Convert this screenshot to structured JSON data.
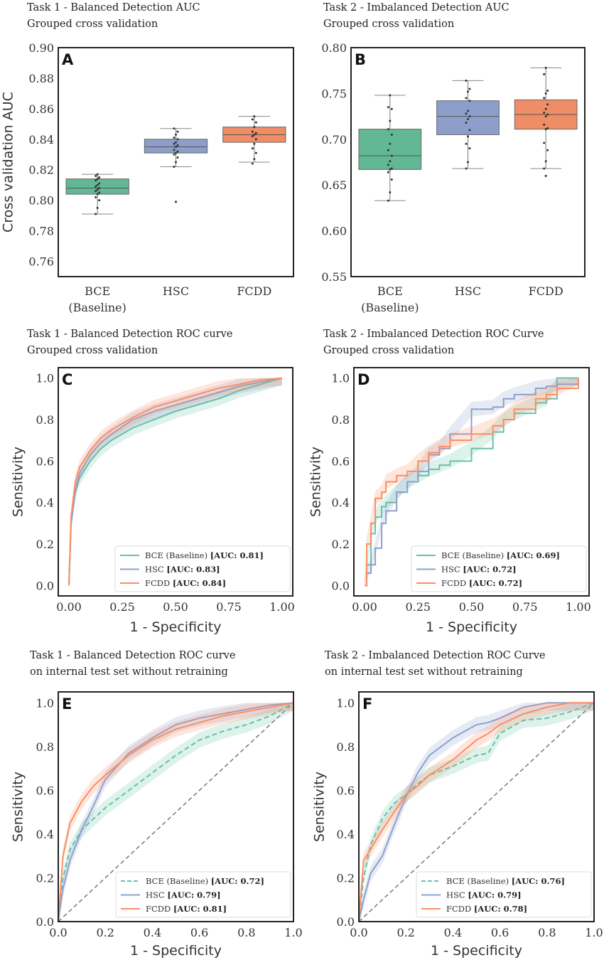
{
  "colors": {
    "bce": "#66c2a5",
    "hsc": "#8da0cb",
    "fcdd": "#fc8d62",
    "bce_box": "#62b895",
    "hsc_box": "#8d9ecb",
    "fcdd_box": "#ef8d66"
  },
  "chart_data": [
    {
      "panel": "A",
      "type": "box",
      "title": [
        "Task 1 - Balanced Detection AUC",
        "Grouped cross validation"
      ],
      "ylabel": "Cross validation AUC",
      "xlabel": "",
      "ylim": [
        0.75,
        0.9
      ],
      "yticks": [
        "0.76",
        "0.78",
        "0.80",
        "0.82",
        "0.84",
        "0.86",
        "0.88",
        "0.90"
      ],
      "categories": [
        [
          "BCE",
          "(Baseline)"
        ],
        [
          "HSC"
        ],
        [
          "FCDD"
        ]
      ],
      "boxes": [
        {
          "name": "BCE",
          "whislo": 0.791,
          "q1": 0.804,
          "med": 0.808,
          "q3": 0.814,
          "whishi": 0.817,
          "fliers": [],
          "points": [
            0.791,
            0.795,
            0.8,
            0.802,
            0.804,
            0.805,
            0.806,
            0.807,
            0.808,
            0.809,
            0.81,
            0.811,
            0.813,
            0.814,
            0.815,
            0.816,
            0.817
          ]
        },
        {
          "name": "HSC",
          "whislo": 0.822,
          "q1": 0.831,
          "med": 0.835,
          "q3": 0.84,
          "whishi": 0.847,
          "fliers": [
            0.799
          ],
          "points": [
            0.822,
            0.825,
            0.828,
            0.83,
            0.831,
            0.832,
            0.833,
            0.835,
            0.836,
            0.837,
            0.838,
            0.84,
            0.841,
            0.843,
            0.845,
            0.847
          ]
        },
        {
          "name": "FCDD",
          "whislo": 0.825,
          "q1": 0.838,
          "med": 0.843,
          "q3": 0.848,
          "whishi": 0.855,
          "fliers": [],
          "points": [
            0.824,
            0.827,
            0.831,
            0.834,
            0.837,
            0.84,
            0.842,
            0.843,
            0.844,
            0.845,
            0.848,
            0.851,
            0.853,
            0.855
          ]
        }
      ]
    },
    {
      "panel": "B",
      "type": "box",
      "title": [
        "Task 2 - Imbalanced  Detection AUC",
        "Grouped cross validation"
      ],
      "ylabel": "",
      "xlabel": "",
      "ylim": [
        0.55,
        0.8
      ],
      "yticks": [
        "0.55",
        "0.60",
        "0.65",
        "0.70",
        "0.75",
        "0.80"
      ],
      "categories": [
        [
          "BCE",
          "(Baseline)"
        ],
        [
          "HSC"
        ],
        [
          "FCDD"
        ]
      ],
      "boxes": [
        {
          "name": "BCE",
          "whislo": 0.633,
          "q1": 0.667,
          "med": 0.682,
          "q3": 0.711,
          "whishi": 0.748,
          "fliers": [],
          "points": [
            0.633,
            0.642,
            0.656,
            0.664,
            0.667,
            0.668,
            0.672,
            0.676,
            0.682,
            0.688,
            0.695,
            0.705,
            0.711,
            0.72,
            0.733,
            0.735,
            0.748
          ]
        },
        {
          "name": "HSC",
          "whislo": 0.668,
          "q1": 0.705,
          "med": 0.725,
          "q3": 0.742,
          "whishi": 0.764,
          "fliers": [],
          "points": [
            0.668,
            0.675,
            0.69,
            0.695,
            0.703,
            0.71,
            0.718,
            0.722,
            0.725,
            0.728,
            0.731,
            0.742,
            0.745,
            0.752,
            0.755,
            0.764
          ]
        },
        {
          "name": "FCDD",
          "whislo": 0.668,
          "q1": 0.711,
          "med": 0.727,
          "q3": 0.743,
          "whishi": 0.778,
          "fliers": [
            0.66
          ],
          "points": [
            0.668,
            0.676,
            0.688,
            0.696,
            0.711,
            0.712,
            0.716,
            0.725,
            0.727,
            0.729,
            0.733,
            0.738,
            0.745,
            0.75,
            0.753,
            0.771,
            0.778
          ]
        }
      ]
    },
    {
      "panel": "C",
      "type": "line",
      "title": [
        "Task 1 - Balanced Detection ROC curve",
        "Grouped cross validation"
      ],
      "ylabel": "Sensitivity",
      "xlabel": "1 - Specificity",
      "xlim": [
        -0.05,
        1.05
      ],
      "ylim": [
        -0.05,
        1.05
      ],
      "xticks": [
        "0.00",
        "0.25",
        "0.50",
        "0.75",
        "1.00"
      ],
      "yticks": [
        "0.0",
        "0.2",
        "0.4",
        "0.6",
        "0.8",
        "1.0"
      ],
      "diagonal": false,
      "step": false,
      "x": [
        0,
        0.01,
        0.03,
        0.05,
        0.1,
        0.15,
        0.2,
        0.3,
        0.4,
        0.5,
        0.6,
        0.7,
        0.8,
        0.9,
        1
      ],
      "series": [
        {
          "key": "bce",
          "name": "BCE (Baseline)",
          "auc": "[AUC: 0.81]",
          "dashed": false,
          "values": [
            0,
            0.3,
            0.45,
            0.52,
            0.6,
            0.66,
            0.7,
            0.76,
            0.8,
            0.84,
            0.87,
            0.9,
            0.94,
            0.97,
            1
          ]
        },
        {
          "key": "hsc",
          "name": "HSC",
          "auc": "[AUC: 0.83]",
          "dashed": false,
          "values": [
            0,
            0.3,
            0.46,
            0.54,
            0.63,
            0.69,
            0.73,
            0.8,
            0.84,
            0.87,
            0.9,
            0.93,
            0.96,
            0.98,
            1
          ]
        },
        {
          "key": "fcdd",
          "name": "FCDD",
          "auc": "[AUC: 0.84]",
          "dashed": false,
          "values": [
            0,
            0.33,
            0.5,
            0.57,
            0.65,
            0.71,
            0.75,
            0.81,
            0.86,
            0.89,
            0.92,
            0.95,
            0.97,
            0.99,
            1
          ]
        }
      ],
      "legend": "lower-right"
    },
    {
      "panel": "D",
      "type": "line",
      "title": [
        "Task 2 - Imbalanced  Detection ROC Curve",
        "Grouped cross validation"
      ],
      "ylabel": "Sensitivity",
      "xlabel": "1 - Specificity",
      "xlim": [
        -0.05,
        1.05
      ],
      "ylim": [
        -0.05,
        1.05
      ],
      "xticks": [
        "0.00",
        "0.25",
        "0.50",
        "0.75",
        "1.00"
      ],
      "yticks": [
        "0.0",
        "0.2",
        "0.4",
        "0.6",
        "0.8",
        "1.0"
      ],
      "diagonal": false,
      "step": true,
      "x": [
        0,
        0.01,
        0.03,
        0.05,
        0.08,
        0.1,
        0.15,
        0.2,
        0.25,
        0.3,
        0.35,
        0.4,
        0.5,
        0.6,
        0.65,
        0.7,
        0.8,
        0.85,
        0.9,
        1
      ],
      "series": [
        {
          "key": "bce",
          "name": "BCE (Baseline)",
          "auc": "[AUC: 0.69]",
          "dashed": false,
          "values": [
            0,
            0.1,
            0.25,
            0.33,
            0.38,
            0.4,
            0.45,
            0.5,
            0.53,
            0.56,
            0.58,
            0.6,
            0.66,
            0.74,
            0.8,
            0.83,
            0.88,
            0.9,
            1.0,
            1.0
          ]
        },
        {
          "key": "hsc",
          "name": "HSC",
          "auc": "[AUC: 0.72]",
          "dashed": false,
          "values": [
            0,
            0.06,
            0.1,
            0.18,
            0.3,
            0.36,
            0.45,
            0.5,
            0.55,
            0.63,
            0.66,
            0.73,
            0.85,
            0.86,
            0.9,
            0.92,
            0.95,
            0.96,
            0.97,
            1.0
          ]
        },
        {
          "key": "fcdd",
          "name": "FCDD",
          "auc": "[AUC: 0.72]",
          "dashed": false,
          "values": [
            0,
            0.2,
            0.3,
            0.42,
            0.45,
            0.5,
            0.53,
            0.55,
            0.6,
            0.64,
            0.67,
            0.7,
            0.73,
            0.77,
            0.8,
            0.85,
            0.9,
            0.92,
            0.95,
            1
          ]
        }
      ],
      "legend": "lower-right"
    },
    {
      "panel": "E",
      "type": "line",
      "title": [
        "Task 1 - Balanced Detection ROC curve",
        "on internal test set without retraining"
      ],
      "ylabel": "Sensitivity",
      "xlabel": "1 - Specificity",
      "xlim": [
        0,
        1
      ],
      "ylim": [
        0,
        1.05
      ],
      "xticks": [
        "0.0",
        "0.2",
        "0.4",
        "0.6",
        "0.8",
        "1.0"
      ],
      "yticks": [
        "0.0",
        "0.2",
        "0.4",
        "0.6",
        "0.8",
        "1.0"
      ],
      "diagonal": true,
      "step": false,
      "x": [
        0,
        0.02,
        0.05,
        0.1,
        0.15,
        0.2,
        0.3,
        0.4,
        0.5,
        0.6,
        0.7,
        0.8,
        0.9,
        1
      ],
      "series": [
        {
          "key": "bce",
          "name": "BCE (Baseline)",
          "auc": "[AUC: 0.72]",
          "dashed": true,
          "values": [
            0,
            0.2,
            0.33,
            0.42,
            0.47,
            0.52,
            0.6,
            0.68,
            0.76,
            0.83,
            0.87,
            0.9,
            0.94,
            1
          ]
        },
        {
          "key": "hsc",
          "name": "HSC",
          "auc": "[AUC: 0.79]",
          "dashed": false,
          "values": [
            0,
            0.15,
            0.28,
            0.42,
            0.53,
            0.65,
            0.77,
            0.84,
            0.9,
            0.93,
            0.95,
            0.97,
            0.99,
            1
          ]
        },
        {
          "key": "fcdd",
          "name": "FCDD",
          "auc": "[AUC: 0.81]",
          "dashed": false,
          "values": [
            0,
            0.3,
            0.45,
            0.55,
            0.62,
            0.67,
            0.76,
            0.83,
            0.88,
            0.91,
            0.94,
            0.96,
            0.98,
            1
          ]
        }
      ],
      "legend": "lower-right"
    },
    {
      "panel": "F",
      "type": "line",
      "title": [
        "Task 2 - Imbalanced  Detection ROC Curve",
        "on internal test set without retraining"
      ],
      "ylabel": "Sensitivity",
      "xlabel": "1 - Specificity",
      "xlim": [
        0,
        1
      ],
      "ylim": [
        0,
        1.05
      ],
      "xticks": [
        "0.0",
        "0.2",
        "0.4",
        "0.6",
        "0.8",
        "1.0"
      ],
      "yticks": [
        "0.0",
        "0.2",
        "0.4",
        "0.6",
        "0.8",
        "1.0"
      ],
      "diagonal": true,
      "step": false,
      "x": [
        0,
        0.02,
        0.05,
        0.1,
        0.15,
        0.2,
        0.25,
        0.3,
        0.4,
        0.5,
        0.55,
        0.6,
        0.7,
        0.8,
        0.9,
        1
      ],
      "series": [
        {
          "key": "bce",
          "name": "BCE (Baseline)",
          "auc": "[AUC: 0.76]",
          "dashed": true,
          "values": [
            0,
            0.2,
            0.35,
            0.47,
            0.54,
            0.58,
            0.63,
            0.67,
            0.71,
            0.76,
            0.77,
            0.86,
            0.92,
            0.93,
            0.96,
            1
          ]
        },
        {
          "key": "hsc",
          "name": "HSC",
          "auc": "[AUC: 0.79]",
          "dashed": false,
          "values": [
            0,
            0.1,
            0.22,
            0.3,
            0.44,
            0.57,
            0.68,
            0.76,
            0.84,
            0.9,
            0.91,
            0.93,
            0.98,
            1,
            1,
            1
          ]
        },
        {
          "key": "fcdd",
          "name": "FCDD",
          "auc": "[AUC: 0.78]",
          "dashed": false,
          "values": [
            0,
            0.28,
            0.33,
            0.42,
            0.5,
            0.58,
            0.62,
            0.67,
            0.74,
            0.83,
            0.86,
            0.9,
            0.95,
            0.98,
            1,
            1
          ]
        }
      ],
      "legend": "lower-right"
    }
  ]
}
